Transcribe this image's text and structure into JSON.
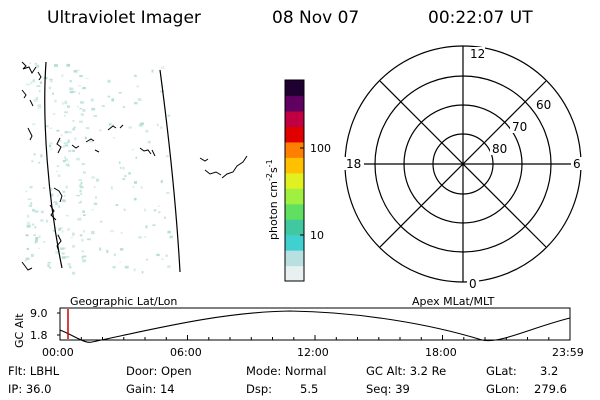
{
  "header": {
    "instrument": "Ultraviolet Imager",
    "date": "08 Nov 07",
    "time": "00:22:07 UT"
  },
  "colorbar": {
    "label_main": "photon cm",
    "label_exp1": "-2",
    "label_mid": "s",
    "label_exp2": "-1",
    "ticks": [
      "100",
      "10"
    ],
    "colors": [
      "#e8f0f0",
      "#b8e0e0",
      "#40d0d0",
      "#40c8a0",
      "#60e060",
      "#a0f040",
      "#e0f020",
      "#ffc000",
      "#ff8000",
      "#e00000",
      "#c00040",
      "#600060",
      "#200030"
    ]
  },
  "left_panel": {
    "title": "Geographic Lat/Lon"
  },
  "right_panel": {
    "title": "Apex  MLat/MLT",
    "mlt_labels": {
      "top": "12",
      "bottom": "0",
      "left": "18",
      "right": "6"
    },
    "lat_labels": [
      "60",
      "70",
      "80"
    ]
  },
  "orbit": {
    "ylabel": "GC Alt",
    "yticks": [
      "9.0",
      "1.8"
    ],
    "xticks": [
      "00:00",
      "06:00",
      "12:00",
      "18:00",
      "23:59"
    ]
  },
  "status": {
    "flt": "Flt: LBHL",
    "ip": "IP: 36.0",
    "door": "Door: Open",
    "gain": "Gain: 14",
    "mode": "Mode: Normal",
    "dsp_label": "Dsp:",
    "dsp_value": "5.5",
    "gcalt": "GC Alt: 3.2 Re",
    "seq": "Seq: 39",
    "glat_label": "GLat:",
    "glat_value": "3.2",
    "glon_label": "GLon:",
    "glon_value": "279.6"
  },
  "colors": {
    "accent_marker": "#cc0000",
    "speckle": "#a8d8d0"
  }
}
